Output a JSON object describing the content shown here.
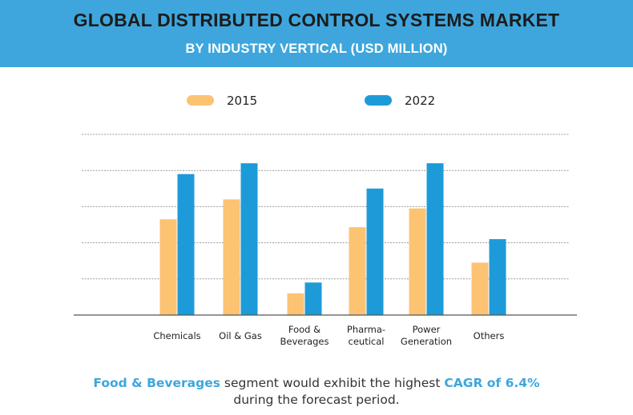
{
  "header": {
    "title": "GLOBAL DISTRIBUTED CONTROL SYSTEMS MARKET",
    "subtitle": "BY INDUSTRY VERTICAL (USD MILLION)"
  },
  "colors": {
    "header_bg": "#3ea6dd",
    "series_2015": "#fcc373",
    "series_2022": "#1d9bd9",
    "grid": "#999999",
    "highlight": "#3ea6dd"
  },
  "chart_data": {
    "type": "bar",
    "categories": [
      [
        "Chemicals"
      ],
      [
        "Oil & Gas"
      ],
      [
        "Food &",
        "Beverages"
      ],
      [
        "Pharma-",
        "ceutical"
      ],
      [
        "Power",
        "Generation"
      ],
      [
        "Others"
      ]
    ],
    "series": [
      {
        "name": "2015",
        "values": [
          2.65,
          3.2,
          0.6,
          2.43,
          2.95,
          1.45
        ]
      },
      {
        "name": "2022",
        "values": [
          3.9,
          4.2,
          0.9,
          3.5,
          4.2,
          2.1
        ]
      }
    ],
    "ylim": [
      0,
      5
    ],
    "grid": true,
    "legend": "top-center"
  },
  "footer": {
    "highlight_segment": "Food & Beverages",
    "text_middle": " segment would exhibit the highest ",
    "highlight_cagr": "CAGR of 6.4%",
    "text_line2": "during the forecast period."
  }
}
